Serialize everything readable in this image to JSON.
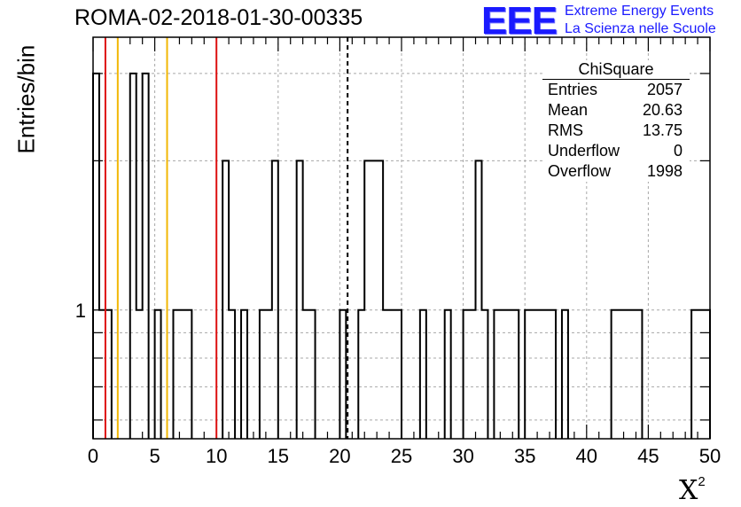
{
  "title": "ROMA-02-2018-01-30-00335",
  "logo": {
    "text": "EEE",
    "line1": "Extreme Energy Events",
    "line2": "La Scienza nelle Scuole",
    "color": "#1a1aff"
  },
  "stats": {
    "title": "ChiSquare",
    "rows": [
      {
        "label": "Entries",
        "value": "2057"
      },
      {
        "label": "Mean",
        "value": "20.63"
      },
      {
        "label": "RMS",
        "value": "13.75"
      },
      {
        "label": "Underflow",
        "value": "0"
      },
      {
        "label": "Overflow",
        "value": "1998"
      }
    ]
  },
  "chart_data": {
    "type": "histogram",
    "xlabel": "X",
    "xlabel_sup": "2",
    "ylabel": "Entries/bin",
    "xlim": [
      0,
      50
    ],
    "ylim": [
      0.55,
      3.55
    ],
    "yscale": "log",
    "grid": true,
    "bin_width": 0.5,
    "x_ticks": [
      0,
      5,
      10,
      15,
      20,
      25,
      30,
      35,
      40,
      45,
      50
    ],
    "y_tick_labels": [
      {
        "value": 1,
        "label": "1"
      }
    ],
    "bins": [
      {
        "x0": 0.0,
        "x1": 0.5,
        "count": 3
      },
      {
        "x0": 0.5,
        "x1": 1.5,
        "count": 1
      },
      {
        "x0": 3.0,
        "x1": 3.5,
        "count": 3
      },
      {
        "x0": 3.5,
        "x1": 4.0,
        "count": 1
      },
      {
        "x0": 4.0,
        "x1": 4.5,
        "count": 3
      },
      {
        "x0": 5.0,
        "x1": 5.5,
        "count": 1
      },
      {
        "x0": 6.5,
        "x1": 8.0,
        "count": 1
      },
      {
        "x0": 10.5,
        "x1": 11.0,
        "count": 2
      },
      {
        "x0": 11.0,
        "x1": 11.5,
        "count": 1
      },
      {
        "x0": 12.0,
        "x1": 12.5,
        "count": 1
      },
      {
        "x0": 13.5,
        "x1": 14.5,
        "count": 1
      },
      {
        "x0": 14.5,
        "x1": 15.0,
        "count": 2
      },
      {
        "x0": 16.5,
        "x1": 17.0,
        "count": 2
      },
      {
        "x0": 17.0,
        "x1": 18.0,
        "count": 1
      },
      {
        "x0": 20.0,
        "x1": 20.5,
        "count": 1
      },
      {
        "x0": 21.5,
        "x1": 22.0,
        "count": 1
      },
      {
        "x0": 22.0,
        "x1": 23.5,
        "count": 2
      },
      {
        "x0": 23.5,
        "x1": 25.0,
        "count": 1
      },
      {
        "x0": 26.5,
        "x1": 27.0,
        "count": 1
      },
      {
        "x0": 28.5,
        "x1": 29.0,
        "count": 1
      },
      {
        "x0": 30.0,
        "x1": 31.0,
        "count": 1
      },
      {
        "x0": 31.0,
        "x1": 31.5,
        "count": 2
      },
      {
        "x0": 31.5,
        "x1": 32.0,
        "count": 1
      },
      {
        "x0": 32.5,
        "x1": 34.5,
        "count": 1
      },
      {
        "x0": 35.0,
        "x1": 37.5,
        "count": 1
      },
      {
        "x0": 38.0,
        "x1": 38.5,
        "count": 1
      },
      {
        "x0": 42.0,
        "x1": 44.5,
        "count": 1
      },
      {
        "x0": 48.5,
        "x1": 50.0,
        "count": 1
      }
    ],
    "vlines": [
      {
        "x": 1,
        "color": "#dd1111",
        "style": "solid"
      },
      {
        "x": 2,
        "color": "#f2b705",
        "style": "solid"
      },
      {
        "x": 6,
        "color": "#f2b705",
        "style": "solid"
      },
      {
        "x": 10,
        "color": "#dd1111",
        "style": "solid"
      },
      {
        "x": 20.63,
        "color": "#000000",
        "style": "dashed"
      }
    ]
  }
}
